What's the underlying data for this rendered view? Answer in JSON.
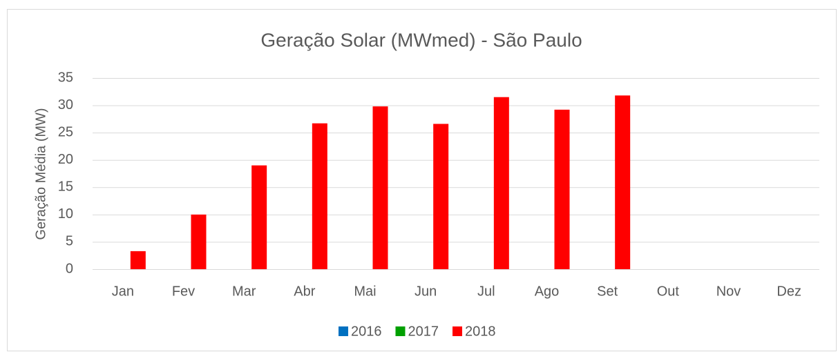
{
  "chart_data": {
    "type": "bar",
    "title": "Geração Solar (MWmed) - São Paulo",
    "y_label": "Geração Média (MW)",
    "categories": [
      "Jan",
      "Fev",
      "Mar",
      "Abr",
      "Mai",
      "Jun",
      "Jul",
      "Ago",
      "Set",
      "Out",
      "Nov",
      "Dez"
    ],
    "series": [
      {
        "name": "2016",
        "color": "#0070c0",
        "values": [
          null,
          null,
          null,
          null,
          null,
          null,
          null,
          null,
          null,
          null,
          null,
          null
        ]
      },
      {
        "name": "2017",
        "color": "#00a000",
        "values": [
          null,
          null,
          null,
          null,
          null,
          null,
          null,
          null,
          null,
          null,
          null,
          null
        ]
      },
      {
        "name": "2018",
        "color": "#ff0000",
        "values": [
          3.3,
          10,
          19,
          26.7,
          29.8,
          26.6,
          31.5,
          29.2,
          31.8,
          null,
          null,
          null
        ]
      }
    ],
    "ylim": [
      0,
      35
    ],
    "yticks": [
      0,
      5,
      10,
      15,
      20,
      25,
      30,
      35
    ],
    "grid": true,
    "legend": "bottom"
  }
}
